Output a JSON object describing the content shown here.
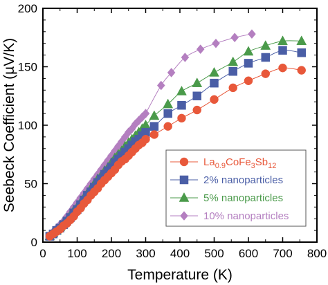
{
  "chart_data": {
    "type": "line",
    "title": "",
    "xlabel": "Temperature (K)",
    "ylabel": "Seebeck Coefficient (µV/K)",
    "xlim": [
      0,
      800
    ],
    "ylim": [
      0,
      200
    ],
    "xticks": [
      "0",
      "100",
      "200",
      "300",
      "400",
      "500",
      "600",
      "700",
      "800"
    ],
    "yticks": [
      "0",
      "50",
      "100",
      "150",
      "200"
    ],
    "grid": false,
    "legend_position": "bottom-right",
    "series": [
      {
        "name": "La0.9CoFe3Sb12",
        "name_parts": {
          "base": "La",
          "sub1": "0.9",
          "mid1": "CoFe",
          "sub2": "3",
          "mid2": "Sb",
          "sub3": "12"
        },
        "color": "#e8583a",
        "marker": "circle",
        "x": [
          20,
          30,
          40,
          50,
          60,
          70,
          80,
          90,
          100,
          110,
          120,
          130,
          140,
          150,
          160,
          170,
          180,
          190,
          200,
          210,
          220,
          230,
          240,
          250,
          260,
          270,
          280,
          290,
          300,
          325,
          365,
          405,
          450,
          500,
          555,
          600,
          650,
          700,
          755
        ],
        "y": [
          5,
          7,
          9,
          11,
          14,
          16,
          19,
          22,
          26,
          29,
          33,
          36,
          40,
          43,
          46,
          50,
          53,
          56,
          59,
          62,
          66,
          69,
          71,
          74,
          77,
          80,
          83,
          85,
          88,
          92,
          99,
          106,
          113,
          122,
          132,
          138,
          144,
          149,
          147
        ]
      },
      {
        "name": "2% nanoparticles",
        "color": "#4a5ea6",
        "marker": "square",
        "x": [
          20,
          30,
          40,
          50,
          60,
          70,
          80,
          90,
          100,
          110,
          120,
          130,
          140,
          150,
          160,
          170,
          180,
          190,
          200,
          210,
          220,
          230,
          240,
          250,
          260,
          270,
          280,
          290,
          300,
          325,
          365,
          405,
          450,
          500,
          555,
          600,
          650,
          700,
          755
        ],
        "y": [
          5,
          7,
          10,
          12,
          15,
          18,
          21,
          25,
          28,
          32,
          36,
          40,
          43,
          47,
          51,
          54,
          58,
          61,
          64,
          68,
          71,
          74,
          77,
          80,
          83,
          86,
          88,
          91,
          94,
          99,
          110,
          117,
          125,
          136,
          146,
          153,
          158,
          164,
          162
        ]
      },
      {
        "name": "5% nanoparticles",
        "color": "#4a9a4a",
        "marker": "triangle",
        "x": [
          20,
          30,
          40,
          50,
          60,
          70,
          80,
          90,
          100,
          110,
          120,
          130,
          140,
          150,
          160,
          170,
          180,
          190,
          200,
          210,
          220,
          230,
          240,
          250,
          260,
          270,
          280,
          290,
          300,
          325,
          365,
          405,
          450,
          500,
          555,
          600,
          650,
          700,
          755
        ],
        "y": [
          5,
          8,
          10,
          13,
          16,
          19,
          23,
          27,
          30,
          34,
          38,
          42,
          46,
          50,
          54,
          57,
          61,
          64,
          68,
          72,
          75,
          78,
          82,
          85,
          88,
          91,
          94,
          97,
          100,
          108,
          118,
          129,
          136,
          145,
          154,
          163,
          168,
          172,
          172
        ]
      },
      {
        "name": "10% nanoparticles",
        "color": "#b47fc0",
        "marker": "diamond",
        "x": [
          20,
          30,
          40,
          50,
          60,
          70,
          80,
          90,
          100,
          110,
          120,
          130,
          140,
          150,
          160,
          170,
          180,
          190,
          200,
          210,
          220,
          230,
          240,
          250,
          260,
          270,
          280,
          290,
          300,
          345,
          375,
          415,
          460,
          505,
          560,
          610
        ],
        "y": [
          6,
          9,
          12,
          15,
          18,
          22,
          26,
          30,
          34,
          38,
          42,
          46,
          50,
          54,
          58,
          62,
          66,
          70,
          74,
          78,
          82,
          86,
          90,
          94,
          97,
          101,
          104,
          107,
          110,
          134,
          145,
          158,
          165,
          170,
          175,
          178
        ]
      }
    ]
  }
}
